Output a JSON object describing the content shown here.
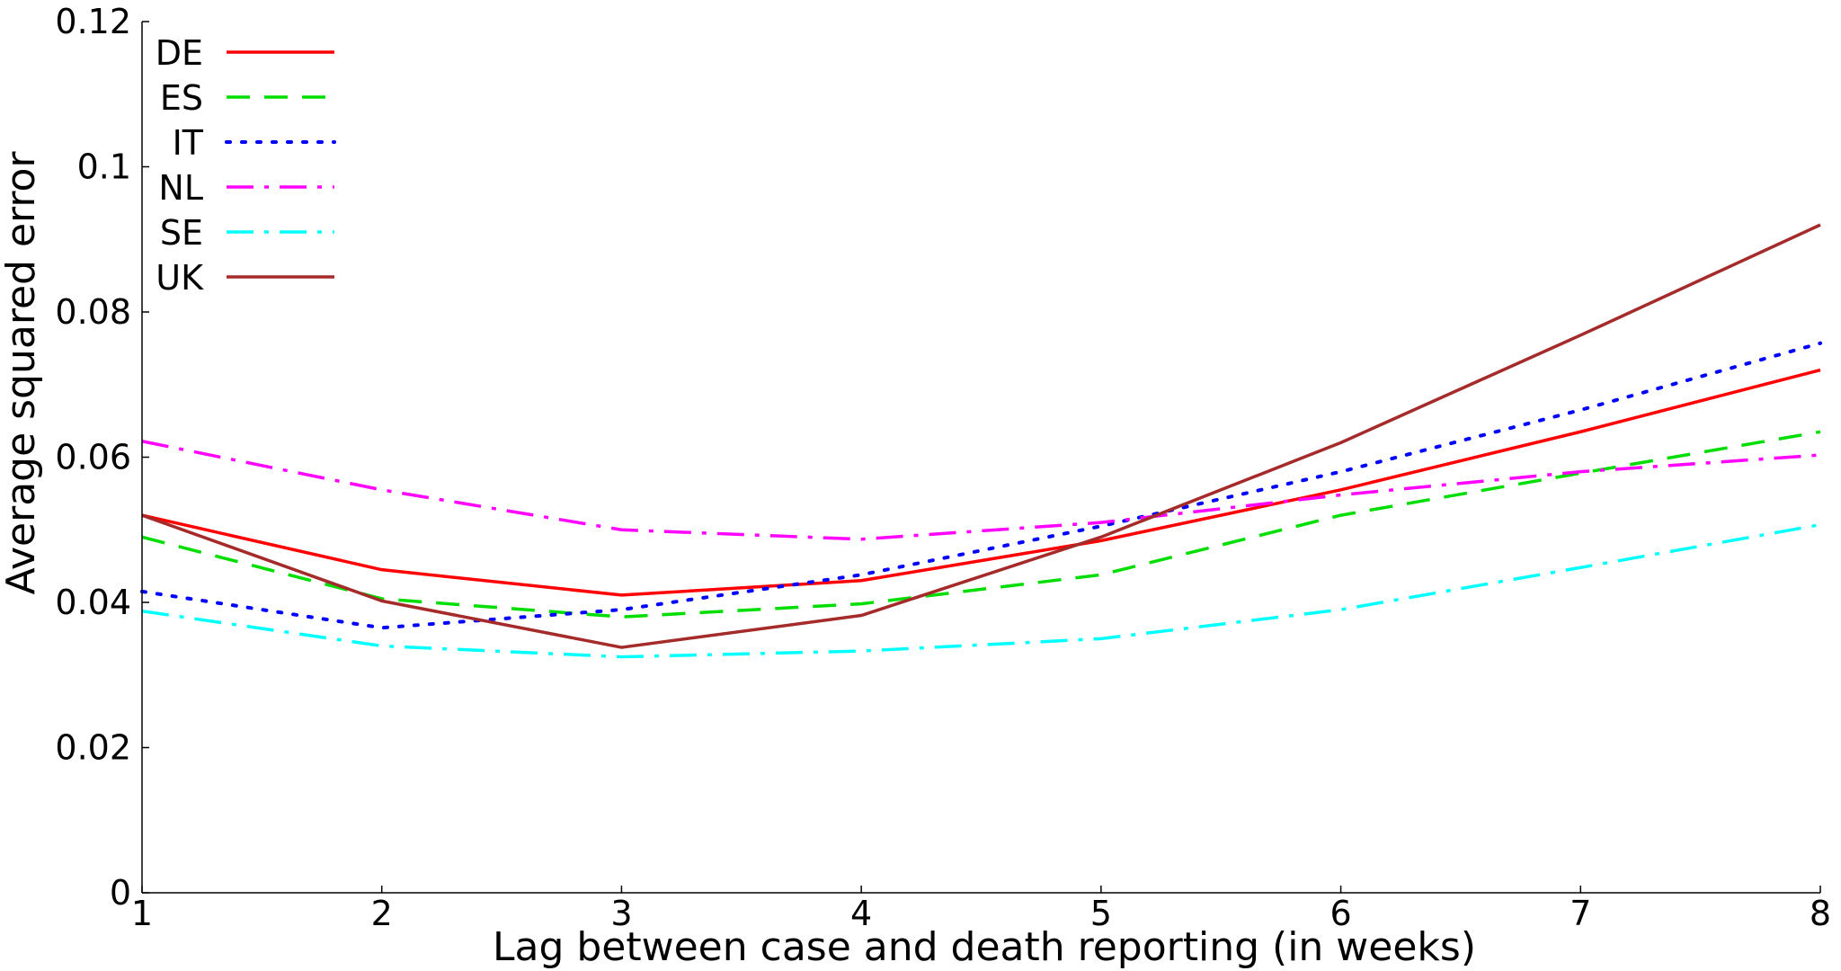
{
  "chart_data": {
    "type": "line",
    "xlabel": "Lag between case and death reporting (in weeks)",
    "ylabel": "Average squared error",
    "xlim": [
      1,
      8
    ],
    "ylim": [
      0,
      0.12
    ],
    "xticks": [
      1,
      2,
      3,
      4,
      5,
      6,
      7,
      8
    ],
    "xtick_labels": [
      "1",
      "2",
      "3",
      "4",
      "5",
      "6",
      "7",
      "8"
    ],
    "yticks": [
      0,
      0.02,
      0.04,
      0.06,
      0.08,
      0.1,
      0.12
    ],
    "ytick_labels": [
      "0",
      "0.02",
      "0.04",
      "0.06",
      "0.08",
      "0.1",
      "0.12"
    ],
    "grid": false,
    "legend_position": "top-left",
    "x": [
      1,
      2,
      3,
      4,
      5,
      6,
      7,
      8
    ],
    "series": [
      {
        "name": "DE",
        "color": "#ff0000",
        "style": "solid",
        "values": [
          0.052,
          0.0445,
          0.041,
          0.043,
          0.0485,
          0.0555,
          0.0635,
          0.072
        ]
      },
      {
        "name": "ES",
        "color": "#00dd00",
        "style": "dashed",
        "values": [
          0.049,
          0.0405,
          0.038,
          0.0398,
          0.0438,
          0.052,
          0.0578,
          0.0635
        ]
      },
      {
        "name": "IT",
        "color": "#0000ff",
        "style": "dotted",
        "values": [
          0.0415,
          0.0365,
          0.039,
          0.0438,
          0.0505,
          0.058,
          0.0665,
          0.0757
        ]
      },
      {
        "name": "NL",
        "color": "#ff00ff",
        "style": "dashdot",
        "values": [
          0.0622,
          0.0555,
          0.05,
          0.0487,
          0.051,
          0.0548,
          0.058,
          0.0603
        ]
      },
      {
        "name": "SE",
        "color": "#00ffff",
        "style": "dashdot",
        "values": [
          0.0388,
          0.034,
          0.0325,
          0.0333,
          0.035,
          0.039,
          0.0448,
          0.0507
        ]
      },
      {
        "name": "UK",
        "color": "#a52a2a",
        "style": "solid",
        "values": [
          0.052,
          0.0402,
          0.0338,
          0.0382,
          0.049,
          0.062,
          0.0768,
          0.092
        ]
      }
    ]
  }
}
